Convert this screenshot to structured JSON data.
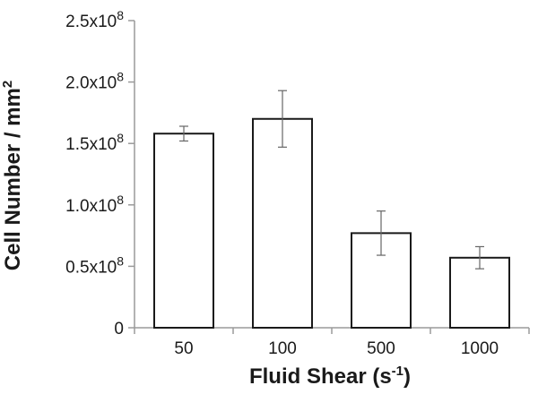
{
  "chart_data": {
    "type": "bar",
    "categories": [
      "50",
      "100",
      "500",
      "1000"
    ],
    "values": [
      158000000.0,
      170000000.0,
      77000000.0,
      57000000.0
    ],
    "error": [
      6000000.0,
      23000000.0,
      18000000.0,
      9000000.0
    ],
    "ylim": [
      0,
      250000000.0
    ],
    "yticks": [
      0,
      50000000.0,
      100000000.0,
      150000000.0,
      200000000.0,
      250000000.0
    ],
    "ytick_labels": [
      {
        "base": "0",
        "exp": ""
      },
      {
        "base": "0.5x10",
        "exp": "8"
      },
      {
        "base": "1.0x10",
        "exp": "8"
      },
      {
        "base": "1.5x10",
        "exp": "8"
      },
      {
        "base": "2.0x10",
        "exp": "8"
      },
      {
        "base": "2.5x10",
        "exp": "8"
      }
    ],
    "xlabel": {
      "main": "Fluid Shear (s",
      "sup": "-1",
      "end": ")"
    },
    "ylabel": {
      "main": "Cell Number  / mm",
      "sup": "2"
    },
    "grid": false,
    "legend": "none",
    "colors": {
      "bar_fill": "#ffffff",
      "bar_stroke": "#1a1a1a",
      "axis": "#9a9a9a",
      "error_bar": "#666666"
    }
  }
}
